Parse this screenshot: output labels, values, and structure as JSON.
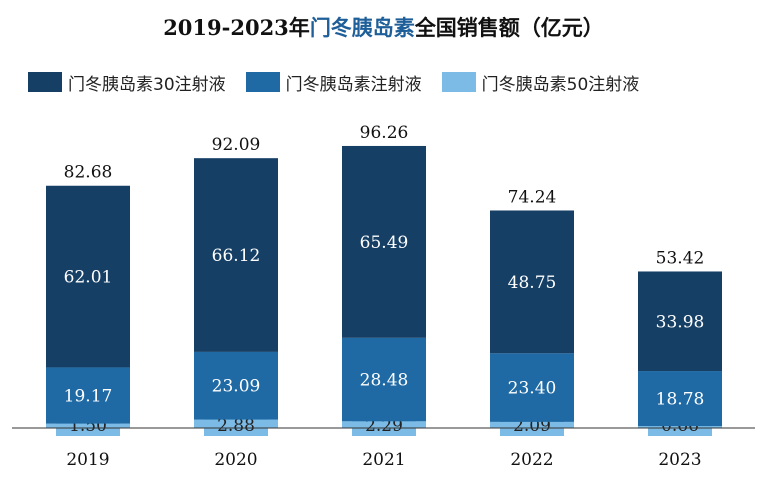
{
  "title": {
    "prefix": "2019-2023年",
    "highlight": "门冬胰岛素",
    "suffix": "全国销售额（亿元）"
  },
  "colors": {
    "series_30": "#163f66",
    "series_main": "#1f6aa5",
    "series_50": "#7bbbe6",
    "highlight": "#1f5f99"
  },
  "chart_data": {
    "type": "bar",
    "stacked": true,
    "title": "2019-2023年门冬胰岛素全国销售额（亿元）",
    "categories": [
      "2019",
      "2020",
      "2021",
      "2022",
      "2023"
    ],
    "series": [
      {
        "name": "门冬胰岛素50注射液",
        "values": [
          1.5,
          2.88,
          2.29,
          2.09,
          0.66
        ]
      },
      {
        "name": "门冬胰岛素注射液",
        "values": [
          19.17,
          23.09,
          28.48,
          23.4,
          18.78
        ]
      },
      {
        "name": "门冬胰岛素30注射液",
        "values": [
          62.01,
          66.12,
          65.49,
          48.75,
          33.98
        ]
      }
    ],
    "totals": [
      82.68,
      92.09,
      96.26,
      74.24,
      53.42
    ],
    "totals_labels": [
      "82.68",
      "92.09",
      "96.26",
      "74.24",
      "53.42"
    ],
    "value_labels": [
      [
        "1.50",
        "2.88",
        "2.29",
        "2.09",
        "0.66"
      ],
      [
        "19.17",
        "23.09",
        "28.48",
        "23.40",
        "18.78"
      ],
      [
        "62.01",
        "66.12",
        "65.49",
        "48.75",
        "33.98"
      ]
    ],
    "legend": [
      "门冬胰岛素30注射液",
      "门冬胰岛素注射液",
      "门冬胰岛素50注射液"
    ],
    "xlabel": "",
    "ylabel": "",
    "ylim": [
      0,
      100
    ]
  }
}
